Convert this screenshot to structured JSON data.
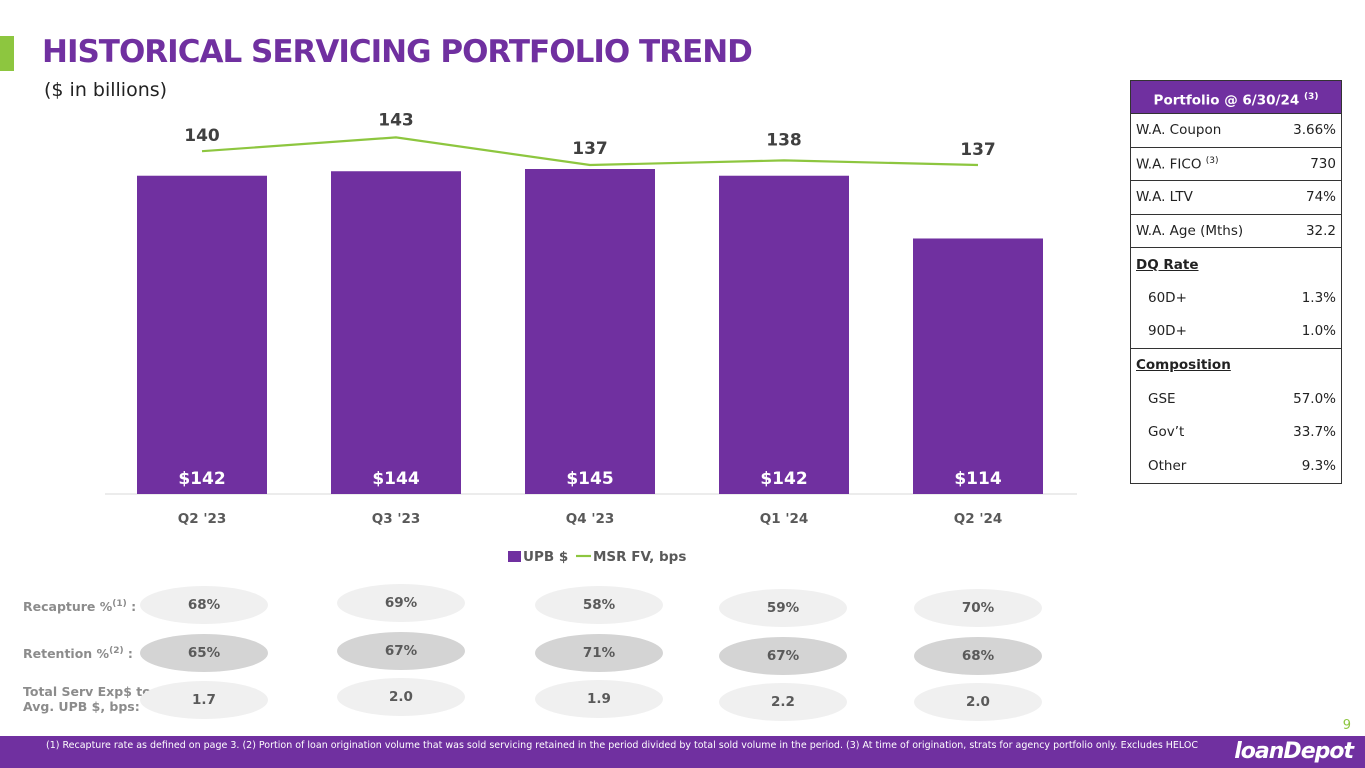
{
  "header": {
    "title": "HISTORICAL SERVICING PORTFOLIO TREND",
    "subtitle": "($ in billions)"
  },
  "colors": {
    "purple": "#7030a0",
    "green": "#8dc63f"
  },
  "chart_data": {
    "type": "bar",
    "title": "",
    "categories": [
      "Q2 '23",
      "Q3 '23",
      "Q4 '23",
      "Q1 '24",
      "Q2 '24"
    ],
    "series": [
      {
        "name": "UPB $",
        "kind": "bar",
        "values": [
          142,
          144,
          145,
          142,
          114
        ],
        "labels": [
          "$142",
          "$144",
          "$145",
          "$142",
          "$114"
        ],
        "color": "#7030a0"
      },
      {
        "name": "MSR FV, bps",
        "kind": "line",
        "values": [
          140,
          143,
          137,
          138,
          137
        ],
        "labels": [
          "140",
          "143",
          "137",
          "138",
          "137"
        ],
        "color": "#8dc63f"
      }
    ],
    "legend": {
      "position": "bottom",
      "entries": [
        "UPB $",
        "MSR FV, bps"
      ]
    },
    "ylim": [
      0,
      145
    ]
  },
  "metrics": {
    "recapture": {
      "label": "Recapture %",
      "sup": "(1)",
      "suffix": " :",
      "values": [
        "68%",
        "69%",
        "58%",
        "59%",
        "70%"
      ]
    },
    "retention": {
      "label": "Retention %",
      "sup": "(2)",
      "suffix": " :",
      "values": [
        "65%",
        "67%",
        "71%",
        "67%",
        "68%"
      ]
    },
    "serv_exp": {
      "label_line1": "Total Serv Exp$ to",
      "label_line2": "Avg. UPB $, bps:",
      "values": [
        "1.7",
        "2.0",
        "1.9",
        "2.2",
        "2.0"
      ]
    }
  },
  "portfolio": {
    "header": "Portfolio @ 6/30/24",
    "header_sup": "(3)",
    "rows": [
      {
        "label": "W.A. Coupon",
        "value": "3.66%"
      },
      {
        "label": "W.A. FICO",
        "sup": "(3)",
        "value": "730"
      },
      {
        "label": "W.A. LTV",
        "value": "74%"
      },
      {
        "label": "W.A. Age (Mths)",
        "value": "32.2"
      }
    ],
    "dq_rate": {
      "label": "DQ Rate",
      "rows": [
        {
          "label": "60D+",
          "value": "1.3%"
        },
        {
          "label": "90D+",
          "value": "1.0%"
        }
      ]
    },
    "composition": {
      "label": "Composition",
      "rows": [
        {
          "label": "GSE",
          "value": "57.0%"
        },
        {
          "label": "Gov’t",
          "value": "33.7%"
        },
        {
          "label": "Other",
          "value": "9.3%"
        }
      ]
    }
  },
  "footer": {
    "footnote": "(1) Recapture rate as defined on page 3. (2) Portion of loan origination volume that was sold servicing retained in the period divided by total sold volume in the period. (3) At time of origination, strats for agency portfolio only. Excludes HELOC",
    "page_number": "9",
    "logo_text": "loanDepot"
  }
}
